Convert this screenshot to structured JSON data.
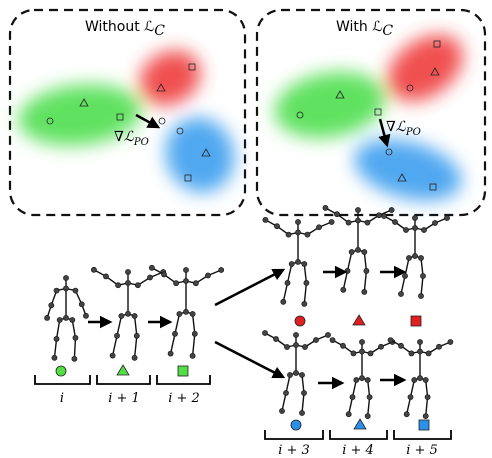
{
  "panels": [
    {
      "title": "Without ℒ",
      "title_sub": "C",
      "gradient": "∇ℒ",
      "gradient_sub": "PO"
    },
    {
      "title": "With ℒ",
      "title_sub": "C",
      "gradient": "∇ℒ",
      "gradient_sub": "PO"
    }
  ],
  "timeline": {
    "labels": [
      "i",
      "i + 1",
      "i + 2",
      "i + 3",
      "i + 4",
      "i + 5"
    ]
  }
}
